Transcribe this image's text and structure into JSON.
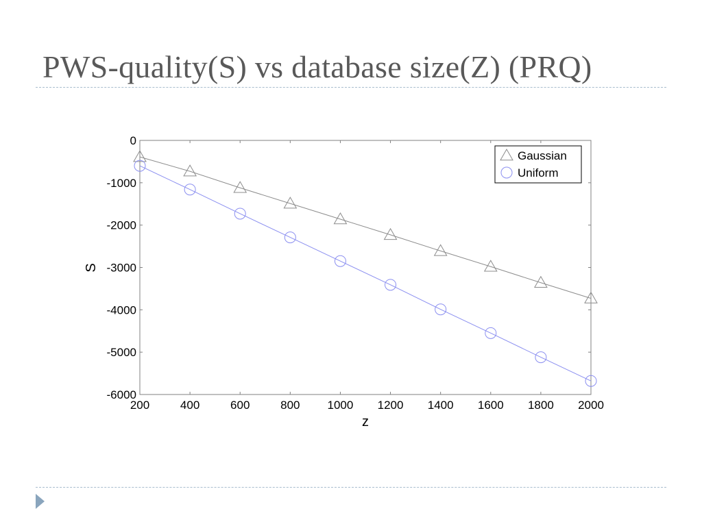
{
  "slide": {
    "title": "PWS-quality(S) vs database size(Z) (PRQ)"
  },
  "colors": {
    "gaussian": "#8c8c8c",
    "uniform": "#8a8ef0",
    "rule": "#a7bccd",
    "bullet": "#8aa5bd"
  },
  "chart_data": {
    "type": "line",
    "title": "",
    "xlabel": "z",
    "ylabel": "S",
    "x": [
      200,
      400,
      600,
      800,
      1000,
      1200,
      1400,
      1600,
      1800,
      2000
    ],
    "xlim": [
      200,
      2000
    ],
    "ylim": [
      -6000,
      0
    ],
    "xticks": [
      200,
      400,
      600,
      800,
      1000,
      1200,
      1400,
      1600,
      1800,
      2000
    ],
    "yticks": [
      0,
      -1000,
      -2000,
      -3000,
      -4000,
      -5000,
      -6000
    ],
    "grid": false,
    "legend_position": "top-right",
    "series": [
      {
        "name": "Gaussian",
        "marker": "triangle",
        "values": [
          -390,
          -730,
          -1120,
          -1490,
          -1860,
          -2230,
          -2610,
          -2980,
          -3360,
          -3730
        ]
      },
      {
        "name": "Uniform",
        "marker": "circle",
        "values": [
          -600,
          -1160,
          -1730,
          -2290,
          -2850,
          -3410,
          -3990,
          -4550,
          -5120,
          -5680
        ]
      }
    ]
  }
}
